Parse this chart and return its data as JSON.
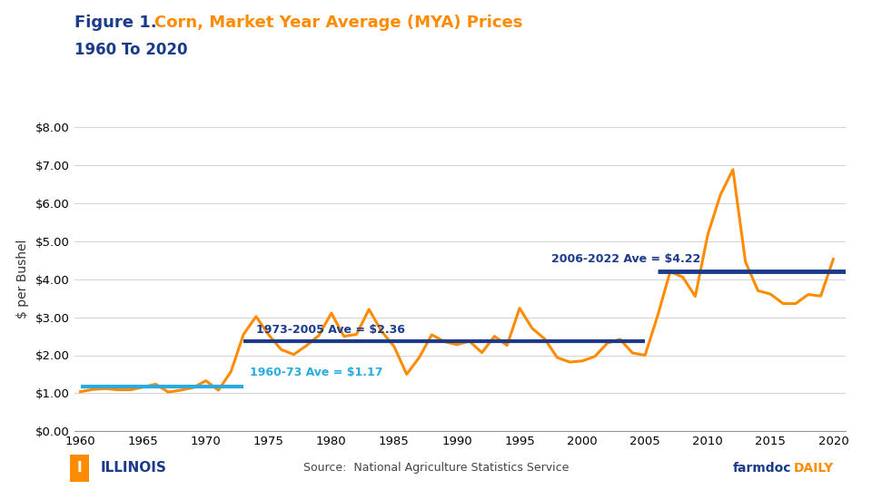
{
  "title_prefix": "Figure 1.  ",
  "title_orange": "Corn, Market Year Average (MYA) Prices",
  "title_sub": "1960 To 2020",
  "ylabel": "$ per Bushel",
  "ylim": [
    0.0,
    8.0
  ],
  "xlim": [
    1959.5,
    2021
  ],
  "source_text": "Source:  National Agriculture Statistics Service",
  "line_color": "#FF8C00",
  "avg1_color": "#29ABE2",
  "avg2_color": "#1B3A8A",
  "title_color": "#1B3A8A",
  "orange_title_color": "#FF8C00",
  "background_color": "#FFFFFF",
  "years": [
    1960,
    1961,
    1962,
    1963,
    1964,
    1965,
    1966,
    1967,
    1968,
    1969,
    1970,
    1971,
    1972,
    1973,
    1974,
    1975,
    1976,
    1977,
    1978,
    1979,
    1980,
    1981,
    1982,
    1983,
    1984,
    1985,
    1986,
    1987,
    1988,
    1989,
    1990,
    1991,
    1992,
    1993,
    1994,
    1995,
    1996,
    1997,
    1998,
    1999,
    2000,
    2001,
    2002,
    2003,
    2004,
    2005,
    2006,
    2007,
    2008,
    2009,
    2010,
    2011,
    2012,
    2013,
    2014,
    2015,
    2016,
    2017,
    2018,
    2019,
    2020
  ],
  "prices": [
    1.04,
    1.1,
    1.12,
    1.09,
    1.09,
    1.16,
    1.24,
    1.03,
    1.08,
    1.15,
    1.33,
    1.08,
    1.57,
    2.55,
    3.02,
    2.54,
    2.15,
    2.02,
    2.25,
    2.52,
    3.11,
    2.5,
    2.55,
    3.21,
    2.63,
    2.23,
    1.5,
    1.94,
    2.54,
    2.36,
    2.28,
    2.37,
    2.07,
    2.5,
    2.26,
    3.24,
    2.71,
    2.43,
    1.94,
    1.82,
    1.85,
    1.97,
    2.32,
    2.42,
    2.06,
    2.0,
    3.04,
    4.2,
    4.06,
    3.55,
    5.18,
    6.22,
    6.89,
    4.46,
    3.7,
    3.61,
    3.36,
    3.36,
    3.6,
    3.56,
    4.53
  ],
  "avg1_start": 1960,
  "avg1_end": 1973,
  "avg1_val": 1.17,
  "avg1_label": "1960-73 Ave = $1.17",
  "avg2_start": 1973,
  "avg2_end": 2005,
  "avg2_val": 2.36,
  "avg2_label": "1973-2005 Ave = $2.36",
  "avg3_start": 2006,
  "avg3_end": 2022,
  "avg3_val": 4.22,
  "avg3_label": "2006-2022 Ave = $4.22",
  "yticks": [
    0.0,
    1.0,
    2.0,
    3.0,
    4.0,
    5.0,
    6.0,
    7.0,
    8.0
  ],
  "xticks": [
    1960,
    1965,
    1970,
    1975,
    1980,
    1985,
    1990,
    1995,
    2000,
    2005,
    2010,
    2015,
    2020
  ],
  "ann1_x": 1973.5,
  "ann1_y": 1.38,
  "ann2_x": 1974.0,
  "ann2_y": 2.52,
  "ann3_x": 1997.5,
  "ann3_y": 4.38
}
